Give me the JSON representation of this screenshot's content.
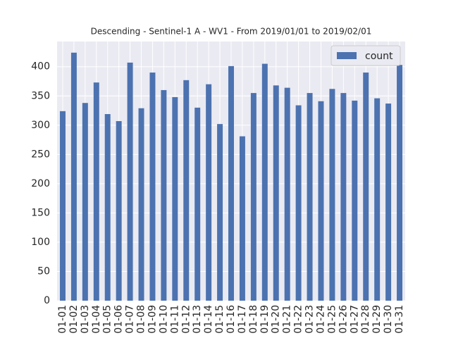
{
  "chart_data": {
    "type": "bar",
    "title": "Descending - Sentinel-1 A - WV1 - From 2019/01/01 to 2019/02/01",
    "categories": [
      "01-01",
      "01-02",
      "01-03",
      "01-04",
      "01-05",
      "01-06",
      "01-07",
      "01-08",
      "01-09",
      "01-10",
      "01-11",
      "01-12",
      "01-13",
      "01-14",
      "01-15",
      "01-16",
      "01-17",
      "01-18",
      "01-19",
      "01-20",
      "01-21",
      "01-22",
      "01-23",
      "01-24",
      "01-25",
      "01-26",
      "01-27",
      "01-28",
      "01-29",
      "01-30",
      "01-31"
    ],
    "series": [
      {
        "name": "count",
        "color": "#4c72b0",
        "values": [
          324,
          424,
          338,
          373,
          319,
          307,
          407,
          329,
          390,
          360,
          348,
          377,
          330,
          370,
          302,
          401,
          281,
          355,
          405,
          368,
          364,
          334,
          355,
          341,
          362,
          355,
          342,
          390,
          346,
          337,
          403
        ]
      }
    ],
    "ylim": [
      0,
      443
    ],
    "yticks": [
      0,
      50,
      100,
      150,
      200,
      250,
      300,
      350,
      400
    ],
    "grid": true,
    "legend": "upper right"
  }
}
